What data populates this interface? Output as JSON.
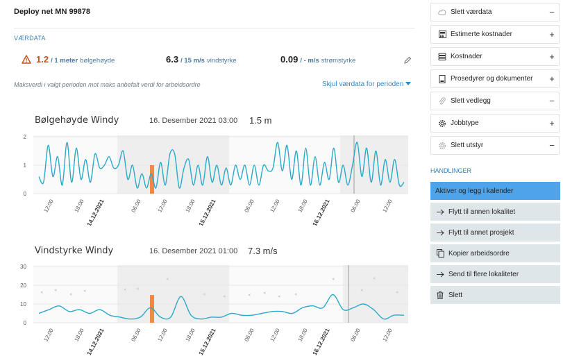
{
  "header": {
    "title": "Deploy net MN 99878"
  },
  "weather": {
    "section_label": "VÆRDATA",
    "metrics": [
      {
        "value": "1.2",
        "limit": "/ 1 meter",
        "label": "bølgehøyde"
      },
      {
        "value": "6.3",
        "limit": "/ 15 m/s",
        "label": "vindstyrke"
      },
      {
        "value": "0.09",
        "limit": "/ - m/s",
        "label": "strømstyrke"
      }
    ],
    "note": "Maksverdi i valgt perioden mot maks anbefalt verdi for arbeidsordre",
    "hide_link": "Skjul værdata for perioden"
  },
  "charts": [
    {
      "title": "Bølgehøyde Windy",
      "date": "16. Desember 2021 03:00",
      "value": "1.5 m"
    },
    {
      "title": "Vindstyrke Windy",
      "date": "16. Desember 2021 01:00",
      "value": "7.3 m/s"
    }
  ],
  "chart_data": [
    {
      "type": "line",
      "title": "Bølgehøyde Windy",
      "x_tick_labels": [
        "12:00",
        "18:00",
        "14.12.2021",
        "06:00",
        "12:00",
        "18:00",
        "15.12.2021",
        "06:00",
        "12:00",
        "18:00",
        "16.12.2021",
        "06:00",
        "12:00"
      ],
      "y_ticks": [
        0,
        1,
        2
      ],
      "ylim": [
        0,
        2
      ],
      "series": [
        {
          "values": [
            0.6,
            0.4,
            1.7,
            0.6,
            1.3,
            0.3,
            1.8,
            0.4,
            1.6,
            0.5,
            1.2,
            0.4,
            1.4,
            0.9,
            1.0,
            1.3,
            0.9,
            1.0,
            1.5,
            0.5,
            1.0,
            0.2,
            0.7,
            0.2,
            0.7,
            0.2,
            1.1,
            0.3,
            1.4,
            1.4,
            0.2,
            0.9,
            1.2,
            0.3,
            1.0,
            0.3,
            1.3,
            0.4,
            1.0,
            0.3,
            0.9,
            0.3,
            1.0,
            0.5,
            1.0,
            0.3,
            1.0,
            0.3,
            1.0,
            0.8,
            0.9,
            1.8,
            0.8,
            1.7,
            0.5,
            1.5,
            0.3,
            1.6,
            0.3,
            1.3,
            0.3,
            1.1,
            0.5,
            1.6,
            0.4,
            1.0,
            0.3,
            1.0,
            1.8,
            0.6,
            1.6,
            0.4,
            1.5,
            0.3,
            1.2,
            0.4,
            1.2,
            0.3,
            0.4
          ]
        }
      ]
    },
    {
      "type": "line",
      "title": "Vindstyrke Windy",
      "x_tick_labels": [
        "12:00",
        "18:00",
        "14.12.2021",
        "06:00",
        "12:00",
        "18:00",
        "15.12.2021",
        "06:00",
        "12:00",
        "18:00",
        "16.12.2021",
        "06:00",
        "12:00"
      ],
      "y_ticks": [
        0,
        10,
        20,
        30
      ],
      "ylim": [
        0,
        30
      ],
      "series": [
        {
          "values": [
            5,
            7,
            9,
            6,
            7,
            5,
            7,
            4,
            3,
            2,
            3,
            8,
            3,
            3,
            14,
            4,
            2,
            3,
            3,
            5,
            4,
            4,
            5,
            6,
            6,
            5,
            8,
            9,
            8,
            15,
            7,
            8,
            10,
            7,
            2,
            4,
            4
          ]
        }
      ]
    }
  ],
  "sidebar": {
    "panels": [
      {
        "label": "Slett værdata",
        "icon": "cloud-icon",
        "toggle": "−"
      },
      {
        "label": "Estimerte kostnader",
        "icon": "calculator-icon",
        "toggle": "+"
      },
      {
        "label": "Kostnader",
        "icon": "coins-icon",
        "toggle": "+"
      },
      {
        "label": "Prosedyrer og dokumenter",
        "icon": "document-icon",
        "toggle": "+"
      },
      {
        "label": "Slett vedlegg",
        "icon": "paperclip-icon",
        "toggle": "−"
      },
      {
        "label": "Jobbtype",
        "icon": "gear-icon",
        "toggle": "+"
      },
      {
        "label": "Slett utstyr",
        "icon": "settings-icon",
        "toggle": "−"
      }
    ],
    "actions_label": "HANDLINGER",
    "actions": [
      {
        "label": "Aktiver og legg i kalender",
        "icon": "",
        "primary": true
      },
      {
        "label": "Flytt til annen lokalitet",
        "icon": "arrow-right-icon"
      },
      {
        "label": "Flytt til annet prosjekt",
        "icon": "arrow-right-icon"
      },
      {
        "label": "Kopier arbeidsordre",
        "icon": "copy-icon"
      },
      {
        "label": "Send til flere lokaliteter",
        "icon": "arrow-right-icon"
      },
      {
        "label": "Slett",
        "icon": "trash-icon"
      }
    ]
  }
}
